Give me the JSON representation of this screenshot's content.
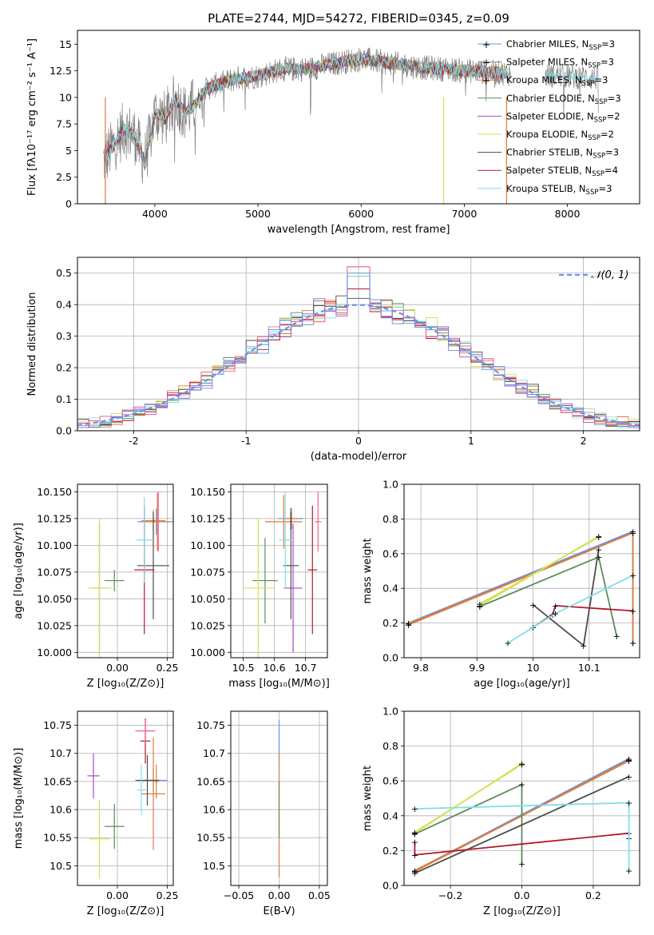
{
  "title": "PLATE=2744, MJD=54272, FIBERID=0345, z=0.09",
  "colors": [
    "#6495ed",
    "#808080",
    "#e07b39",
    "#5b8c5a",
    "#a64ac9",
    "#d4e157",
    "#4d4d4d",
    "#b2182b",
    "#80deea",
    "#f06292",
    "#9e9e9e"
  ],
  "chart_data": [
    {
      "id": "spectrum",
      "type": "line",
      "xlabel": "wavelength [Angstrom, rest frame]",
      "ylabel": "Flux [fλ10⁻¹⁷ erg cm⁻² s⁻¹ A⁻¹]",
      "xlim": [
        3250,
        8700
      ],
      "ylim": [
        0,
        16.3
      ],
      "xticks": [
        4000,
        5000,
        6000,
        7000,
        8000
      ],
      "yticks": [
        0.0,
        2.5,
        5.0,
        7.5,
        10.0,
        12.5,
        15.0
      ],
      "grid": false,
      "legend_position": "upper right",
      "continuum": {
        "x": [
          3500,
          3600,
          3700,
          3800,
          3900,
          3950,
          4000,
          4100,
          4200,
          4300,
          4400,
          4500,
          4600,
          4800,
          5000,
          5200,
          5500,
          5800,
          6000,
          6300,
          6600,
          6900,
          7200,
          7500,
          7800,
          8000,
          8300
        ],
        "y": [
          4.0,
          5.5,
          7.0,
          6.5,
          4.0,
          6.0,
          8.5,
          8.0,
          9.8,
          8.5,
          9.5,
          10.8,
          11.2,
          11.8,
          12.0,
          12.6,
          12.7,
          13.3,
          13.6,
          13.2,
          12.8,
          12.6,
          12.4,
          12.2,
          12.1,
          12.0,
          11.8
        ]
      },
      "legend": [
        "Chabrier MILES, N_SSP=3",
        "Salpeter MILES, N_SSP=3",
        "Kroupa MILES, N_SSP=3",
        "Chabrier ELODIE, N_SSP=3",
        "Salpeter ELODIE, N_SSP=2",
        "Kroupa ELODIE, N_SSP=2",
        "Chabrier STELIB, N_SSP=3",
        "Salpeter STELIB, N_SSP=4",
        "Kroupa STELIB, N_SSP=3"
      ]
    },
    {
      "id": "residuals",
      "type": "line",
      "xlabel": "(data-model)/error",
      "ylabel": "Normed distribution",
      "xlim": [
        -2.5,
        2.5
      ],
      "ylim": [
        0,
        0.55
      ],
      "xticks": [
        -2,
        -1,
        0,
        1,
        2
      ],
      "yticks": [
        0.0,
        0.1,
        0.2,
        0.3,
        0.4,
        0.5
      ],
      "grid": true,
      "legend_position": "upper right",
      "reference": {
        "label": "𝒩(0, 1)",
        "mean": 0,
        "sigma": 1
      },
      "bin_width": 0.1,
      "peak_values": [
        0.45,
        0.49,
        0.52,
        0.5,
        0.42
      ]
    },
    {
      "id": "age-vs-Z",
      "type": "scatter",
      "xlabel": "Z [log₁₀(Z/Z⊙)]",
      "ylabel": "age  [log₁₀(age/yr)]",
      "xlim": [
        -0.2,
        0.28
      ],
      "ylim": [
        9.995,
        10.157
      ],
      "xticks": [
        0.0,
        0.25
      ],
      "xticklabels": [
        "0.00",
        "0.25"
      ],
      "yticks": [
        10.0,
        10.025,
        10.05,
        10.075,
        10.1,
        10.125,
        10.15
      ],
      "yticklabels": [
        "10.000",
        "10.025",
        "10.050",
        "10.075",
        "10.100",
        "10.125",
        "10.150"
      ],
      "grid": true,
      "points": [
        {
          "x": 0.195,
          "y": 10.122,
          "xerr": 0.095,
          "yerr": 0.012
        },
        {
          "x": 0.18,
          "y": 10.123,
          "xerr": 0.06,
          "yerr": 0.01
        },
        {
          "x": 0.2,
          "y": 10.122,
          "xerr": 0.06,
          "yerr": 0.027
        },
        {
          "x": -0.015,
          "y": 10.067,
          "xerr": 0.05,
          "yerr": 0.01
        },
        {
          "x": -0.09,
          "y": 10.06,
          "xerr": 0.03,
          "yerr": 0.06
        },
        {
          "x": -0.09,
          "y": 10.06,
          "xerr": 0.06,
          "yerr": 0.065
        },
        {
          "x": 0.18,
          "y": 10.081,
          "xerr": 0.08,
          "yerr": 0.05
        },
        {
          "x": 0.135,
          "y": 10.077,
          "xerr": 0.05,
          "yerr": 0.06
        },
        {
          "x": 0.135,
          "y": 10.105,
          "xerr": 0.04,
          "yerr": 0.04
        },
        {
          "x": 0.205,
          "y": 10.122,
          "xerr": 0.01,
          "yerr": 0.028
        }
      ]
    },
    {
      "id": "age-vs-mass",
      "type": "scatter",
      "xlabel": "mass [log₁₀(M/M⊙)]",
      "xlim": [
        10.46,
        10.77
      ],
      "ylim": [
        9.995,
        10.157
      ],
      "xticks": [
        10.5,
        10.6,
        10.7
      ],
      "yticks": [
        10.0,
        10.025,
        10.05,
        10.075,
        10.1,
        10.125,
        10.15
      ],
      "yticklabels": [
        "10.000",
        "10.025",
        "10.050",
        "10.075",
        "10.100",
        "10.125",
        "10.150"
      ],
      "grid": true,
      "points": [
        {
          "x": 10.652,
          "y": 10.125,
          "xerr": 0.04,
          "yerr": 0.01
        },
        {
          "x": 10.655,
          "y": 10.125,
          "xerr": 0.02,
          "yerr": 0.01
        },
        {
          "x": 10.63,
          "y": 10.122,
          "xerr": 0.06,
          "yerr": 0.025
        },
        {
          "x": 10.57,
          "y": 10.067,
          "xerr": 0.04,
          "yerr": 0.04
        },
        {
          "x": 10.66,
          "y": 10.06,
          "xerr": 0.03,
          "yerr": 0.06
        },
        {
          "x": 10.548,
          "y": 10.06,
          "xerr": 0.05,
          "yerr": 0.065
        },
        {
          "x": 10.653,
          "y": 10.081,
          "xerr": 0.025,
          "yerr": 0.05
        },
        {
          "x": 10.722,
          "y": 10.077,
          "xerr": 0.015,
          "yerr": 0.06
        },
        {
          "x": 10.635,
          "y": 10.105,
          "xerr": 0.02,
          "yerr": 0.045
        },
        {
          "x": 10.74,
          "y": 10.122,
          "xerr": 0.01,
          "yerr": 0.028
        }
      ]
    },
    {
      "id": "weight-vs-age",
      "type": "line",
      "xlabel": "age  [log₁₀(age/yr)]",
      "ylabel": "mass weight",
      "xlim": [
        9.77,
        10.19
      ],
      "ylim": [
        0,
        1.0
      ],
      "xticks": [
        9.8,
        9.9,
        10.0,
        10.1
      ],
      "yticks": [
        0.0,
        0.2,
        0.4,
        0.6,
        0.8,
        1.0
      ],
      "grid": true,
      "series": [
        {
          "x": [
            9.778,
            10.178,
            10.178
          ],
          "y": [
            0.2,
            0.728,
            0.085
          ]
        },
        {
          "x": [
            9.778,
            10.178
          ],
          "y": [
            0.19,
            0.72
          ]
        },
        {
          "x": [
            9.778,
            10.178,
            10.178
          ],
          "y": [
            0.195,
            0.72,
            0.085
          ]
        },
        {
          "x": [
            9.905,
            10.117,
            10.149
          ],
          "y": [
            0.295,
            0.58,
            0.125
          ]
        },
        {
          "x": [
            9.905,
            10.117
          ],
          "y": [
            0.3,
            0.7
          ]
        },
        {
          "x": [
            9.905,
            10.117
          ],
          "y": [
            0.31,
            0.695
          ]
        },
        {
          "x": [
            10.0,
            10.09,
            10.117
          ],
          "y": [
            0.305,
            0.07,
            0.625
          ]
        },
        {
          "x": [
            10.0,
            10.035,
            10.04,
            10.178
          ],
          "y": [
            0.175,
            0.25,
            0.3,
            0.27
          ]
        },
        {
          "x": [
            9.955,
            10.04,
            10.178
          ],
          "y": [
            0.085,
            0.255,
            0.475
          ]
        }
      ]
    },
    {
      "id": "mass-vs-Z",
      "type": "scatter",
      "xlabel": "Z [log₁₀(Z/Z⊙)]",
      "ylabel": "mass [log₁₀(M/M⊙)]",
      "xlim": [
        -0.2,
        0.28
      ],
      "ylim": [
        10.465,
        10.775
      ],
      "xticks": [
        0.0,
        0.25
      ],
      "xticklabels": [
        "0.00",
        "0.25"
      ],
      "yticks": [
        10.5,
        10.55,
        10.6,
        10.65,
        10.7,
        10.75
      ],
      "grid": true,
      "points": [
        {
          "x": 0.18,
          "y": 10.652,
          "xerr": 0.07,
          "yerr": 0.02
        },
        {
          "x": 0.195,
          "y": 10.65,
          "xerr": 0.01,
          "yerr": 0.03
        },
        {
          "x": 0.18,
          "y": 10.628,
          "xerr": 0.06,
          "yerr": 0.1
        },
        {
          "x": -0.015,
          "y": 10.57,
          "xerr": 0.05,
          "yerr": 0.04
        },
        {
          "x": -0.12,
          "y": 10.66,
          "xerr": 0.03,
          "yerr": 0.04
        },
        {
          "x": -0.09,
          "y": 10.548,
          "xerr": 0.05,
          "yerr": 0.07
        },
        {
          "x": 0.15,
          "y": 10.652,
          "xerr": 0.06,
          "yerr": 0.045
        },
        {
          "x": 0.14,
          "y": 10.722,
          "xerr": 0.025,
          "yerr": 0.04
        },
        {
          "x": 0.12,
          "y": 10.635,
          "xerr": 0.02,
          "yerr": 0.045
        },
        {
          "x": 0.14,
          "y": 10.74,
          "xerr": 0.05,
          "yerr": 0.02
        }
      ]
    },
    {
      "id": "mass-vs-EBV",
      "type": "scatter",
      "xlabel": "E(B-V)",
      "xlim": [
        -0.06,
        0.06
      ],
      "ylim": [
        10.465,
        10.775
      ],
      "xticks": [
        -0.05,
        0.0,
        0.05
      ],
      "xticklabels": [
        "−0.05",
        "0.00",
        "0.05"
      ],
      "yticks": [
        10.5,
        10.55,
        10.6,
        10.65,
        10.7,
        10.75
      ],
      "grid": true,
      "points": [
        {
          "x": 0.0,
          "y": 10.72,
          "xerr": 0,
          "yerr": 0.04
        },
        {
          "x": 0.0,
          "y": 10.66,
          "xerr": 0,
          "yerr": 0.04
        },
        {
          "x": 0.0,
          "y": 10.55,
          "xerr": 0,
          "yerr": 0.07
        },
        {
          "x": 0.0,
          "y": 10.6,
          "xerr": 0,
          "yerr": 0.05
        }
      ]
    },
    {
      "id": "weight-vs-Z",
      "type": "line",
      "xlabel": "Z [log₁₀(Z/Z⊙)]",
      "ylabel": "mass weight",
      "xlim": [
        -0.33,
        0.33
      ],
      "ylim": [
        0,
        1.0
      ],
      "xticks": [
        -0.2,
        0.0,
        0.2
      ],
      "xticklabels": [
        "−0.2",
        "0.0",
        "0.2"
      ],
      "yticks": [
        0.0,
        0.2,
        0.4,
        0.6,
        0.8,
        1.0
      ],
      "grid": true,
      "series": [
        {
          "x": [
            -0.3,
            0.3
          ],
          "y": [
            0.085,
            0.728
          ]
        },
        {
          "x": [
            -0.3,
            0.3
          ],
          "y": [
            0.08,
            0.72
          ]
        },
        {
          "x": [
            -0.3,
            0.3
          ],
          "y": [
            0.085,
            0.715
          ]
        },
        {
          "x": [
            -0.3,
            0.0,
            0.0
          ],
          "y": [
            0.295,
            0.58,
            0.125
          ]
        },
        {
          "x": [
            -0.3,
            0.0
          ],
          "y": [
            0.3,
            0.7
          ]
        },
        {
          "x": [
            -0.3,
            0.0
          ],
          "y": [
            0.305,
            0.695
          ]
        },
        {
          "x": [
            -0.3,
            0.3
          ],
          "y": [
            0.07,
            0.625
          ]
        },
        {
          "x": [
            -0.3,
            -0.3,
            0.3,
            0.3
          ],
          "y": [
            0.25,
            0.175,
            0.3,
            0.27
          ]
        },
        {
          "x": [
            -0.3,
            0.3,
            0.3
          ],
          "y": [
            0.44,
            0.475,
            0.085
          ]
        }
      ]
    }
  ]
}
